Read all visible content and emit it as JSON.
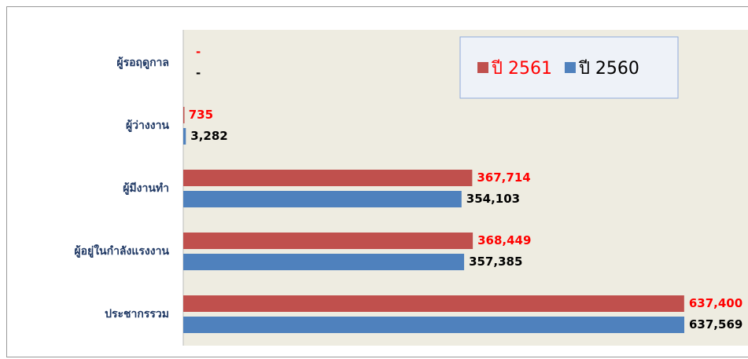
{
  "chart_data": {
    "type": "bar",
    "orientation": "horizontal",
    "categories": [
      "ผู้รอฤดูกาล",
      "ผู้ว่างงาน",
      "ผู้มีงานทำ",
      "ผู้อยู่ในกำลังแรงงาน",
      "ประชากรรวม"
    ],
    "series": [
      {
        "name": "ปี 2561",
        "color": "#c0504d",
        "label_color": "#ff0000",
        "values": [
          null,
          735,
          367714,
          368449,
          637400
        ],
        "value_labels": [
          "-",
          "735",
          "367,714",
          "368,449",
          "637,400"
        ]
      },
      {
        "name": "ปี 2560",
        "color": "#4f81bd",
        "label_color": "#000000",
        "values": [
          null,
          3282,
          354103,
          357385,
          637569
        ],
        "value_labels": [
          "-",
          "3,282",
          "354,103",
          "357,385",
          "637,569"
        ]
      }
    ],
    "legend": "top-right"
  }
}
